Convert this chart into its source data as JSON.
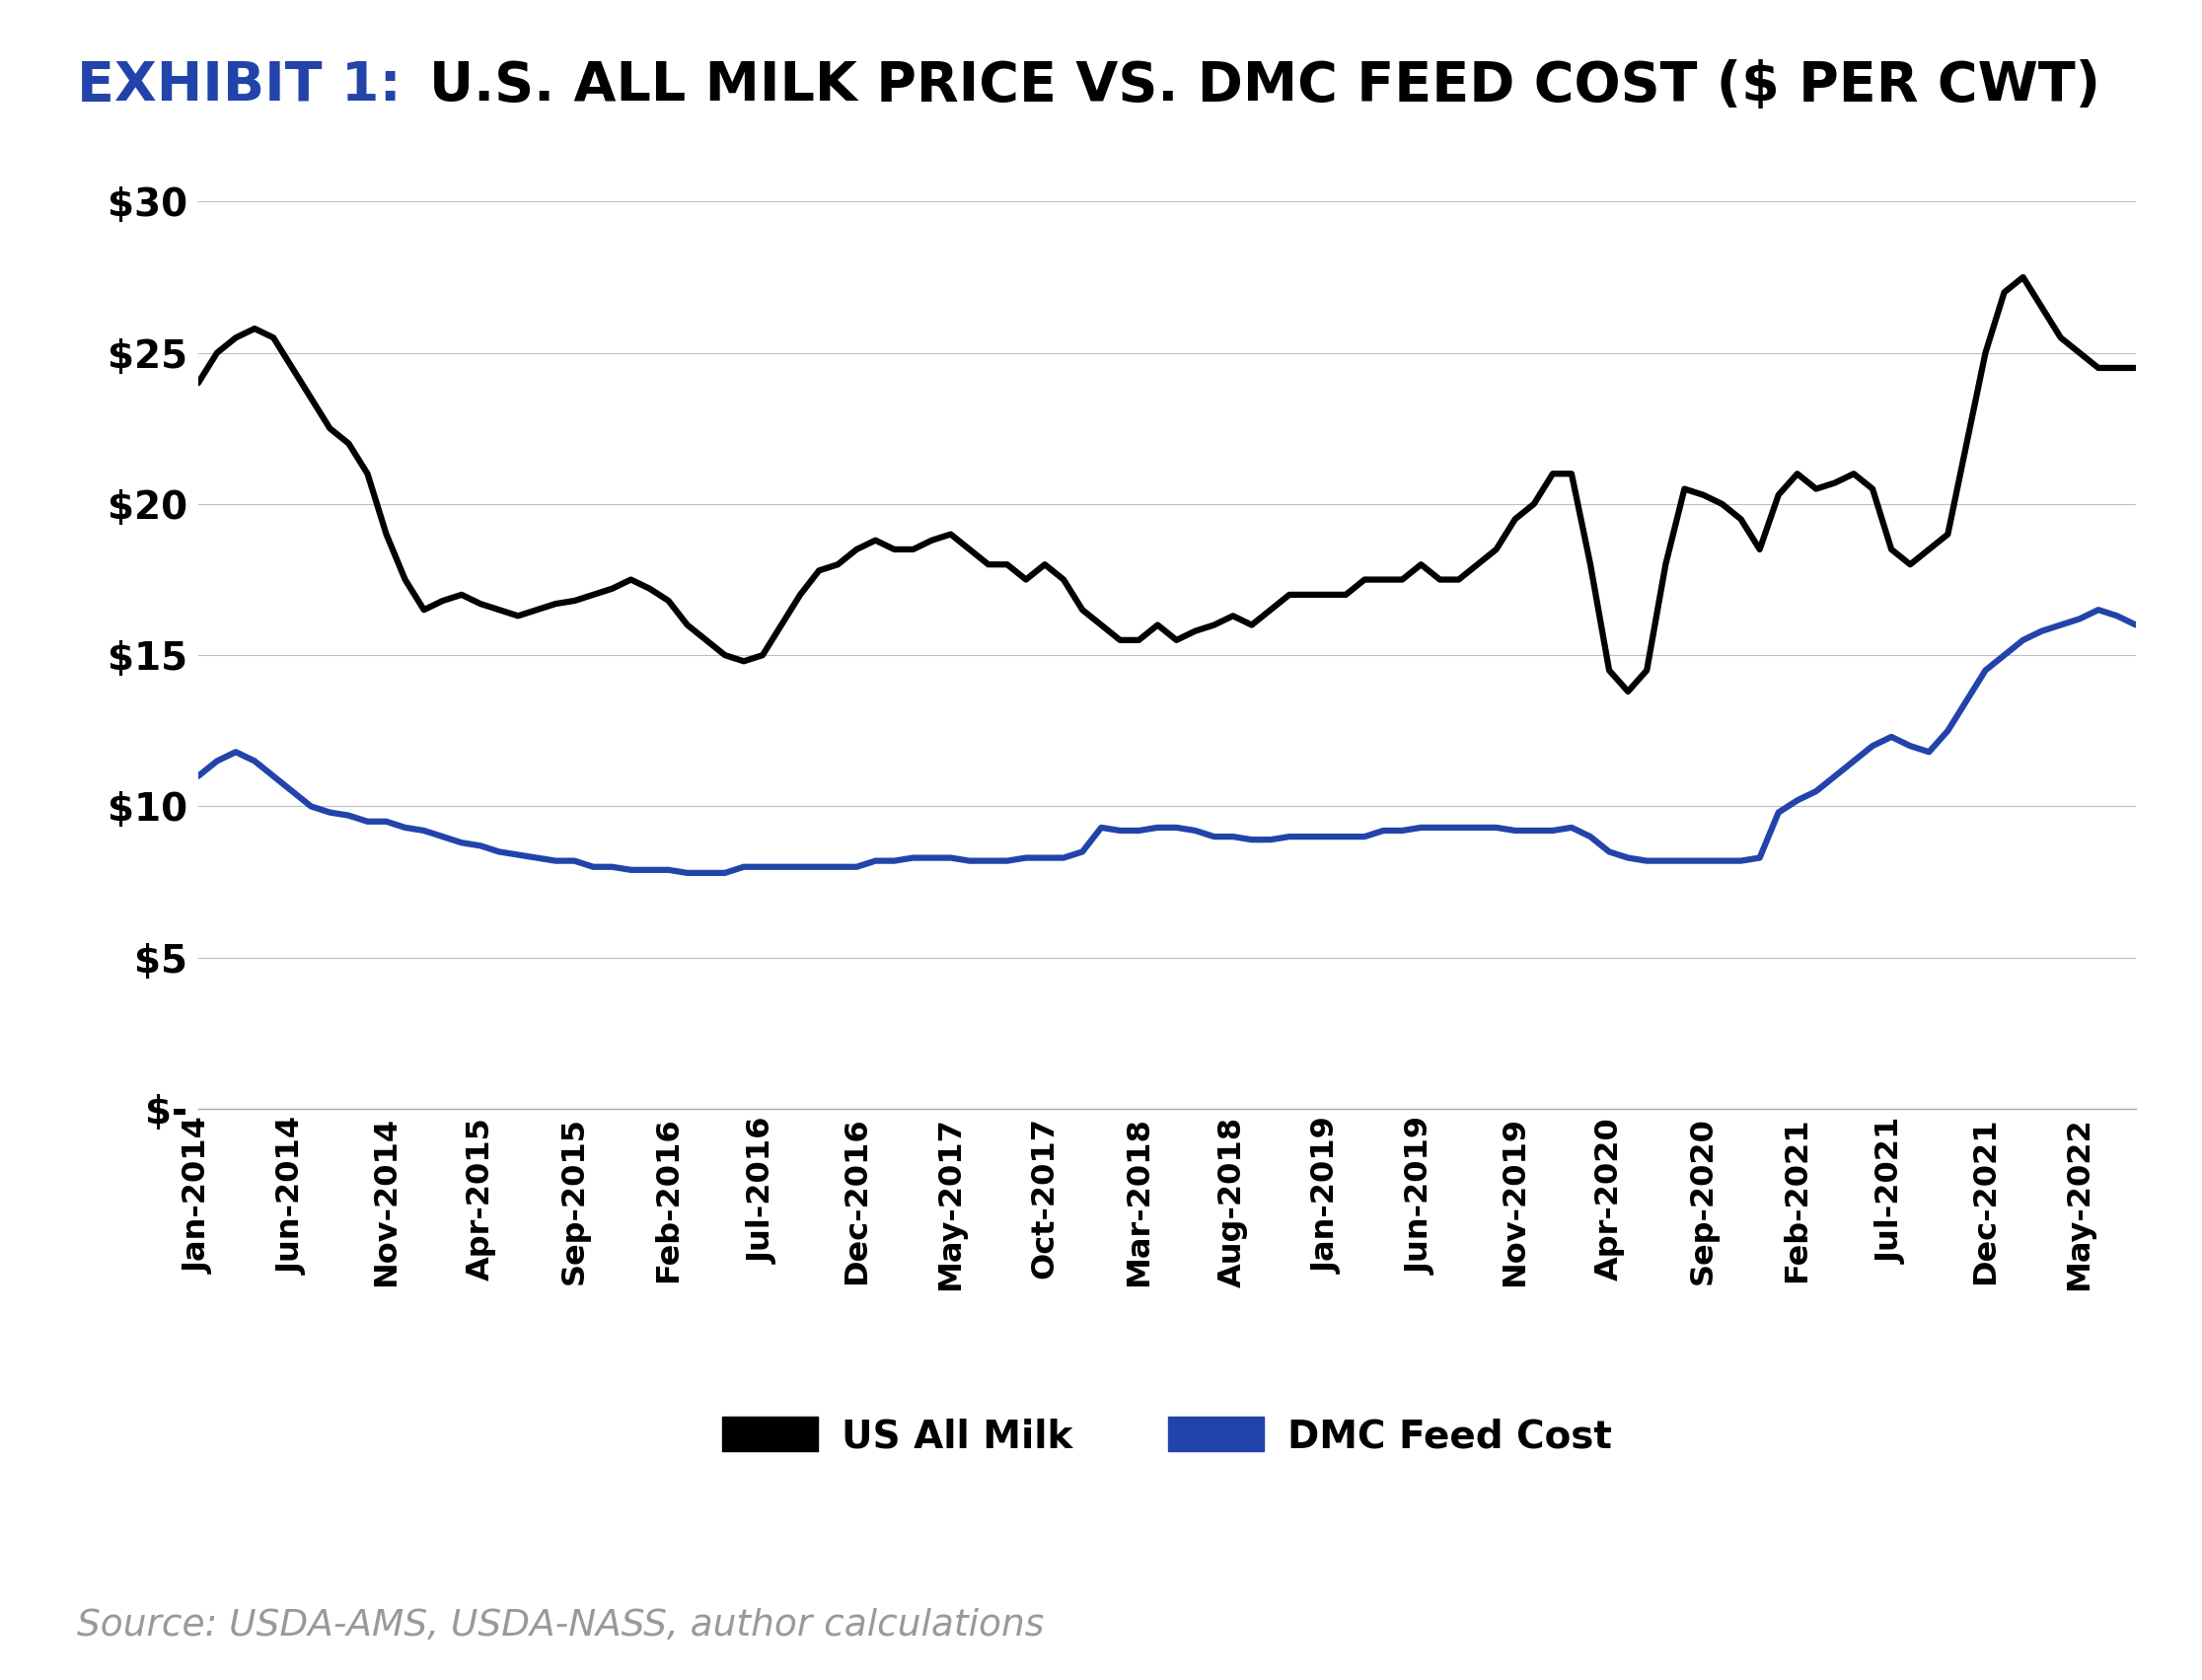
{
  "title_exhibit": "EXHIBIT 1:",
  "title_rest": "U.S. ALL MILK PRICE VS. DMC FEED COST ($ PER CWT)",
  "exhibit_color": "#2244aa",
  "title_color": "#000000",
  "source_text": "Source: USDA-AMS, USDA-NASS, author calculations",
  "source_color": "#999999",
  "legend_labels": [
    "US All Milk",
    "DMC Feed Cost"
  ],
  "legend_colors": [
    "#000000",
    "#2244aa"
  ],
  "milk_color": "#000000",
  "dmc_color": "#2244aa",
  "background_color": "#ffffff",
  "grid_color": "#bbbbcc",
  "ylim": [
    0,
    30
  ],
  "yticks": [
    0,
    5,
    10,
    15,
    20,
    25,
    30
  ],
  "ytick_labels": [
    "$-",
    "$5",
    "$10",
    "$15",
    "$20",
    "$25",
    "$30"
  ],
  "x_labels": [
    "Jan-2014",
    "Jun-2014",
    "Nov-2014",
    "Apr-2015",
    "Sep-2015",
    "Feb-2016",
    "Jul-2016",
    "Dec-2016",
    "May-2017",
    "Oct-2017",
    "Mar-2018",
    "Aug-2018",
    "Jan-2019",
    "Jun-2019",
    "Nov-2019",
    "Apr-2020",
    "Sep-2020",
    "Feb-2021",
    "Jul-2021",
    "Dec-2021",
    "May-2022"
  ],
  "milk_monthly": [
    24.0,
    25.0,
    25.5,
    25.8,
    25.5,
    24.5,
    23.5,
    22.5,
    22.0,
    21.0,
    19.0,
    17.5,
    16.5,
    16.8,
    17.0,
    16.7,
    16.5,
    16.3,
    16.5,
    16.7,
    16.8,
    17.0,
    17.2,
    17.5,
    17.2,
    16.8,
    16.0,
    15.5,
    15.0,
    14.8,
    15.0,
    16.0,
    17.0,
    17.8,
    18.0,
    18.5,
    18.8,
    18.5,
    18.5,
    18.8,
    19.0,
    18.5,
    18.0,
    18.0,
    17.5,
    18.0,
    17.5,
    16.5,
    16.0,
    15.5,
    15.5,
    16.0,
    15.5,
    15.8,
    16.0,
    16.3,
    16.0,
    16.5,
    17.0,
    17.0,
    17.0,
    17.0,
    17.5,
    17.5,
    17.5,
    18.0,
    17.5,
    17.5,
    18.0,
    18.5,
    19.5,
    20.0,
    21.0,
    21.0,
    18.0,
    14.5,
    13.8,
    14.5,
    18.0,
    20.5,
    20.3,
    20.0,
    19.5,
    18.5,
    20.3,
    21.0,
    20.5,
    20.7,
    21.0,
    20.5,
    18.5,
    18.0,
    18.5,
    19.0,
    22.0,
    25.0,
    27.0,
    27.5,
    26.5,
    25.5,
    25.0,
    24.5,
    24.5,
    24.5
  ],
  "dmc_monthly": [
    11.0,
    11.5,
    11.8,
    11.5,
    11.0,
    10.5,
    10.0,
    9.8,
    9.7,
    9.5,
    9.5,
    9.3,
    9.2,
    9.0,
    8.8,
    8.7,
    8.5,
    8.4,
    8.3,
    8.2,
    8.2,
    8.0,
    8.0,
    7.9,
    7.9,
    7.9,
    7.8,
    7.8,
    7.8,
    8.0,
    8.0,
    8.0,
    8.0,
    8.0,
    8.0,
    8.0,
    8.2,
    8.2,
    8.3,
    8.3,
    8.3,
    8.2,
    8.2,
    8.2,
    8.3,
    8.3,
    8.3,
    8.5,
    9.3,
    9.2,
    9.2,
    9.3,
    9.3,
    9.2,
    9.0,
    9.0,
    8.9,
    8.9,
    9.0,
    9.0,
    9.0,
    9.0,
    9.0,
    9.2,
    9.2,
    9.3,
    9.3,
    9.3,
    9.3,
    9.3,
    9.2,
    9.2,
    9.2,
    9.3,
    9.0,
    8.5,
    8.3,
    8.2,
    8.2,
    8.2,
    8.2,
    8.2,
    8.2,
    8.3,
    9.8,
    10.2,
    10.5,
    11.0,
    11.5,
    12.0,
    12.3,
    12.0,
    11.8,
    12.5,
    13.5,
    14.5,
    15.0,
    15.5,
    15.8,
    16.0,
    16.2,
    16.5,
    16.3,
    16.0
  ],
  "tick_positions": [
    0,
    5,
    10,
    15,
    20,
    25,
    30,
    35,
    40,
    45,
    50,
    55,
    60,
    65,
    70,
    75,
    80,
    85,
    90,
    95,
    100
  ]
}
